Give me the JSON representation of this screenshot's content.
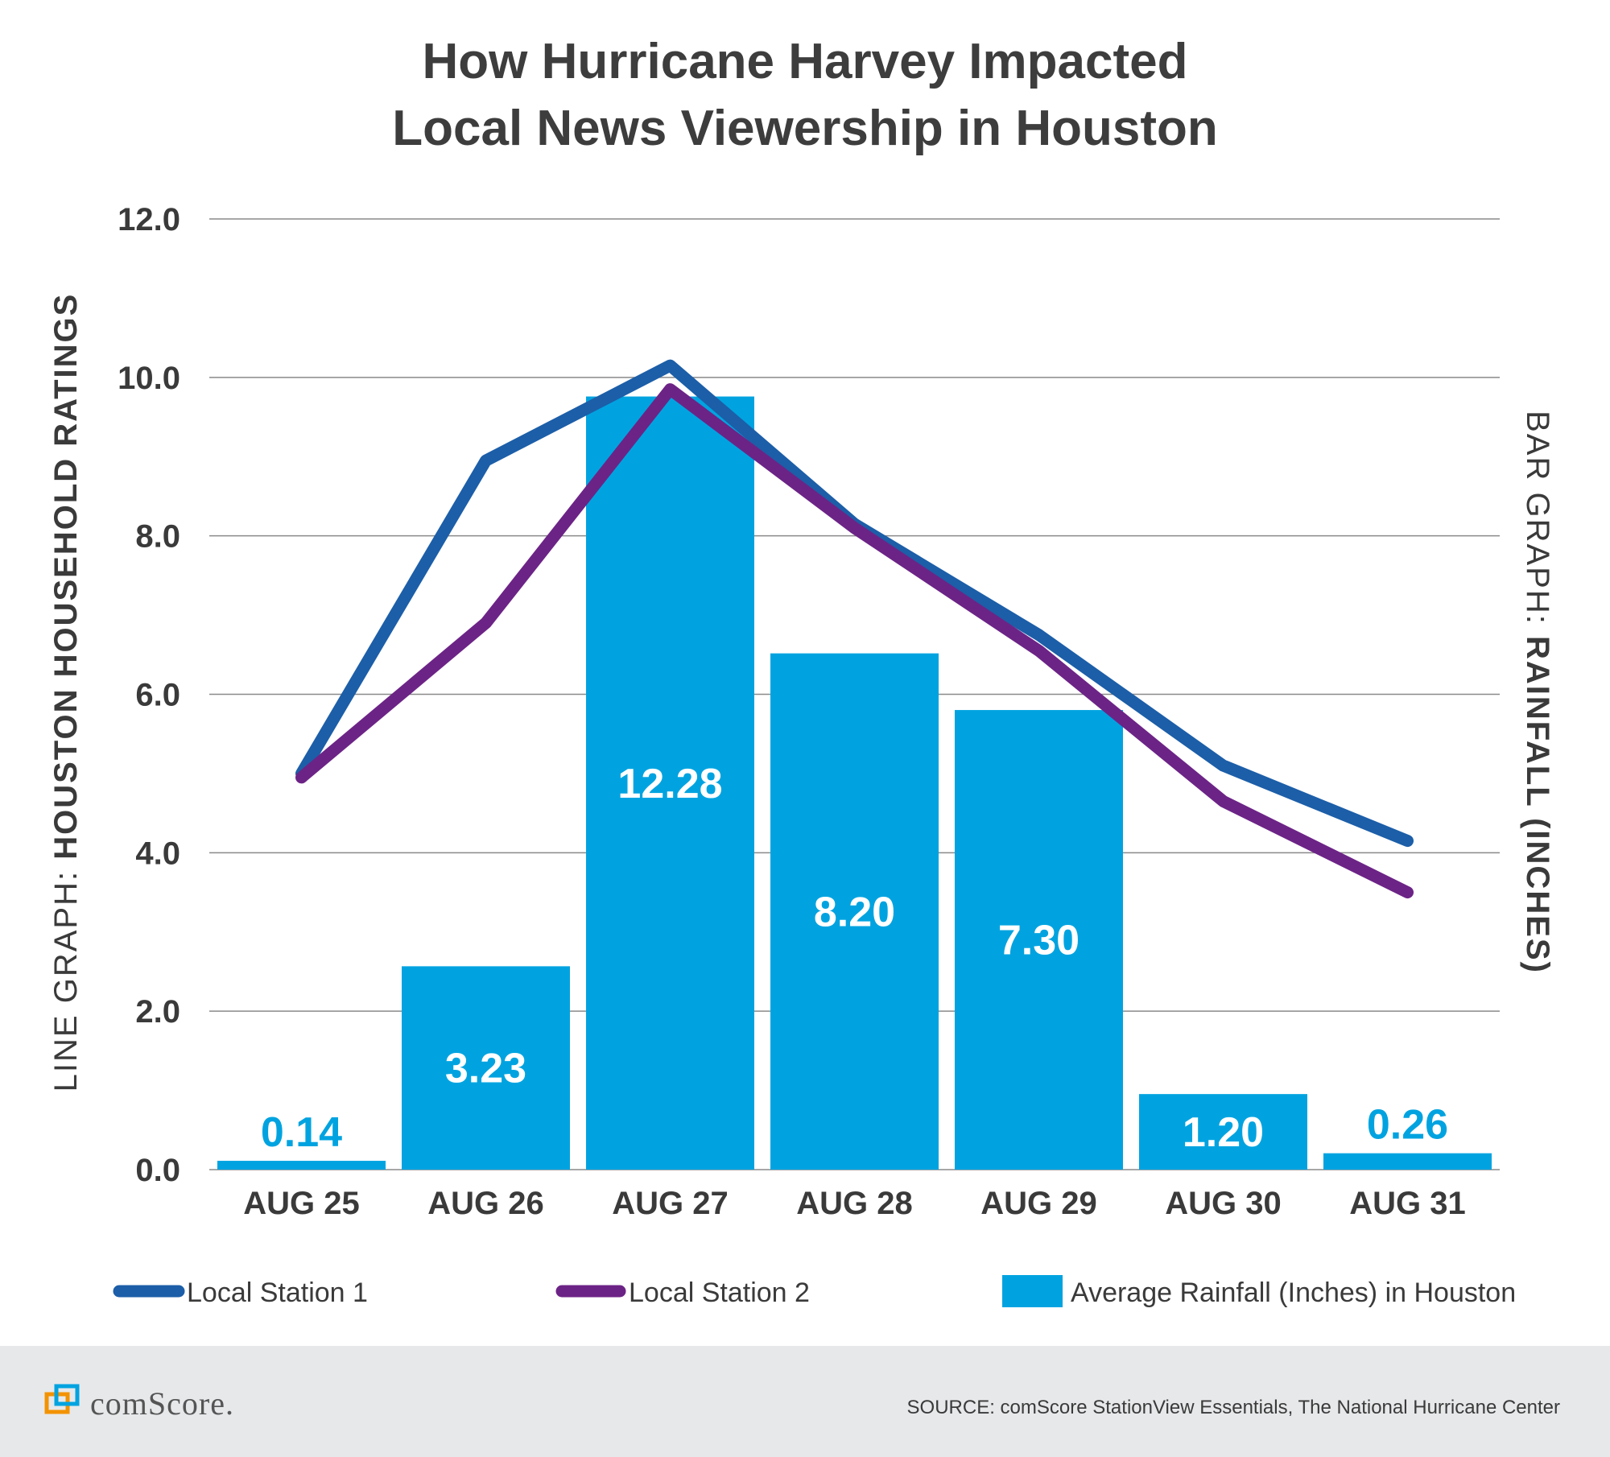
{
  "chart_data": {
    "type": "bar",
    "title_lines": [
      "How Hurricane Harvey Impacted",
      "Local News Viewership in Houston"
    ],
    "categories": [
      "AUG 25",
      "AUG 26",
      "AUG 27",
      "AUG 28",
      "AUG 29",
      "AUG 30",
      "AUG 31"
    ],
    "left_axis": {
      "title_light": "LINE GRAPH: ",
      "title_strong": "HOUSTON HOUSEHOLD RATINGS",
      "ylim": [
        0,
        12
      ],
      "ticks": [
        0,
        2,
        4,
        6,
        8,
        10,
        12
      ],
      "tick_labels": [
        "0.0",
        "2.0",
        "4.0",
        "6.0",
        "8.0",
        "10.0",
        "12.0"
      ]
    },
    "right_axis": {
      "title_light": "BAR GRAPH: ",
      "title_strong": "RAINFALL (INCHES)",
      "ylim": [
        0,
        15.1
      ]
    },
    "bars": {
      "name": "Average Rainfall (Inches) in Houston",
      "color": "#00a3e0",
      "values": [
        0.14,
        3.23,
        12.28,
        8.2,
        7.3,
        1.2,
        0.26
      ],
      "labels": [
        "0.14",
        "3.23",
        "12.28",
        "8.20",
        "7.30",
        "1.20",
        "0.26"
      ]
    },
    "series": [
      {
        "name": "Local Station 1",
        "color": "#1c5ea8",
        "values": [
          5.0,
          8.95,
          10.15,
          8.15,
          6.75,
          5.1,
          4.15
        ]
      },
      {
        "name": "Local Station 2",
        "color": "#6c2386",
        "values": [
          4.95,
          6.9,
          9.85,
          8.1,
          6.55,
          4.65,
          3.5
        ]
      }
    ],
    "grid": true,
    "legend_position": "bottom"
  },
  "footer": {
    "brand": "comScore.",
    "source": "SOURCE: comScore StationView Essentials, The National Hurricane Center"
  }
}
